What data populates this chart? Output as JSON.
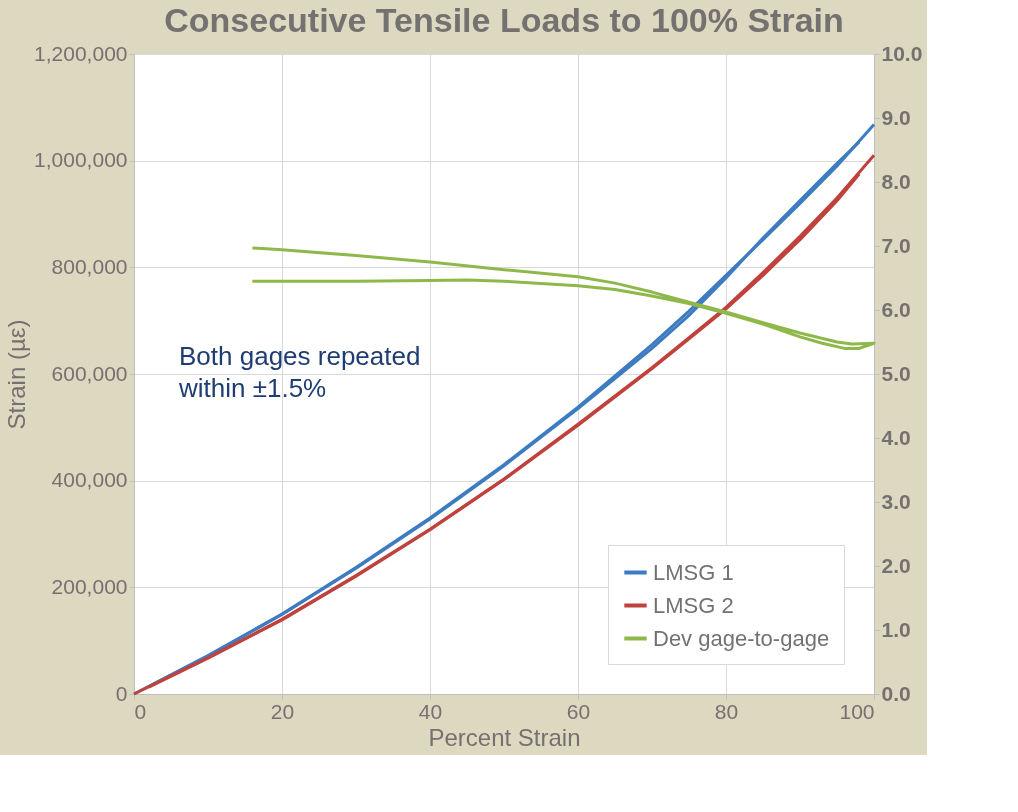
{
  "chart_data": {
    "type": "line",
    "title": "Consecutive Tensile Loads to 100% Strain",
    "xlabel": "Percent Strain",
    "ylabel": "Strain (µε)",
    "annotations": [
      "Both gages repeated within ±1.5%"
    ],
    "xlim": [
      0,
      100
    ],
    "xticks": [
      0,
      20,
      40,
      60,
      80,
      100
    ],
    "ylim": [
      0,
      1200000
    ],
    "yticks": [
      {
        "value": 0,
        "label": "0"
      },
      {
        "value": 200000,
        "label": "200,000"
      },
      {
        "value": 400000,
        "label": "400,000"
      },
      {
        "value": 600000,
        "label": "600,000"
      },
      {
        "value": 800000,
        "label": "800,000"
      },
      {
        "value": 1000000,
        "label": "1,000,000"
      },
      {
        "value": 1200000,
        "label": "1,200,000"
      }
    ],
    "y2lim": [
      0,
      10
    ],
    "y2ticks": [
      {
        "value": 0,
        "label": "0.0"
      },
      {
        "value": 1,
        "label": "1.0"
      },
      {
        "value": 2,
        "label": "2.0"
      },
      {
        "value": 3,
        "label": "3.0"
      },
      {
        "value": 4,
        "label": "4.0"
      },
      {
        "value": 5,
        "label": "5.0"
      },
      {
        "value": 6,
        "label": "6.0"
      },
      {
        "value": 7,
        "label": "7.0"
      },
      {
        "value": 8,
        "label": "8.0"
      },
      {
        "value": 9,
        "label": "9.0"
      },
      {
        "value": 10,
        "label": "10.0"
      }
    ],
    "grid": true,
    "legend": "bottom right",
    "marker": "none",
    "line_style": "solid",
    "series": [
      {
        "name": "LMSG 1",
        "color": "#3d7cc0",
        "x": [
          0,
          10,
          20,
          30,
          40,
          50,
          60,
          70,
          75,
          80,
          85,
          90,
          95,
          100
        ],
        "values": [
          0,
          72000,
          150000,
          237000,
          330000,
          430000,
          538000,
          655000,
          718000,
          785000,
          852000,
          920000,
          990000,
          1068000
        ]
      },
      {
        "color": "#3d7cc0",
        "x": [
          2,
          10,
          20,
          30,
          40,
          50,
          60,
          70,
          75,
          80,
          85,
          90,
          95,
          98
        ],
        "values": [
          14000,
          71000,
          149000,
          236000,
          328000,
          428000,
          535000,
          648000,
          710000,
          780000,
          855000,
          925000,
          995000,
          1035000
        ]
      },
      {
        "name": "LMSG 2",
        "color": "#c0423c",
        "x": [
          0,
          10,
          20,
          30,
          40,
          50,
          60,
          70,
          75,
          80,
          85,
          90,
          95,
          100
        ],
        "values": [
          0,
          68000,
          140000,
          222000,
          309000,
          403000,
          506000,
          612000,
          668000,
          725000,
          790000,
          858000,
          930000,
          1010000
        ]
      },
      {
        "color": "#c0423c",
        "x": [
          2,
          10,
          20,
          30,
          40,
          50,
          60,
          70,
          75,
          80,
          85,
          90,
          95,
          98
        ],
        "values": [
          13000,
          67000,
          139000,
          221000,
          308000,
          402000,
          504000,
          610000,
          666000,
          722000,
          785000,
          852000,
          925000,
          975000
        ]
      },
      {
        "name": "Dev gage-to-gage",
        "color": "#8fb84a",
        "axis": "y2",
        "x": [
          16,
          20,
          30,
          40,
          50,
          60,
          65,
          70,
          75,
          80,
          85,
          90,
          95,
          97,
          100,
          98,
          96,
          93,
          90,
          85,
          80,
          75,
          70,
          65,
          60,
          50,
          45,
          40,
          30,
          20,
          16
        ],
        "values": [
          6.97,
          6.94,
          6.85,
          6.75,
          6.63,
          6.52,
          6.42,
          6.28,
          6.12,
          5.97,
          5.8,
          5.64,
          5.5,
          5.47,
          5.48,
          5.4,
          5.4,
          5.48,
          5.58,
          5.78,
          5.95,
          6.1,
          6.22,
          6.32,
          6.38,
          6.45,
          6.47,
          6.46,
          6.45,
          6.45,
          6.45
        ]
      }
    ]
  }
}
